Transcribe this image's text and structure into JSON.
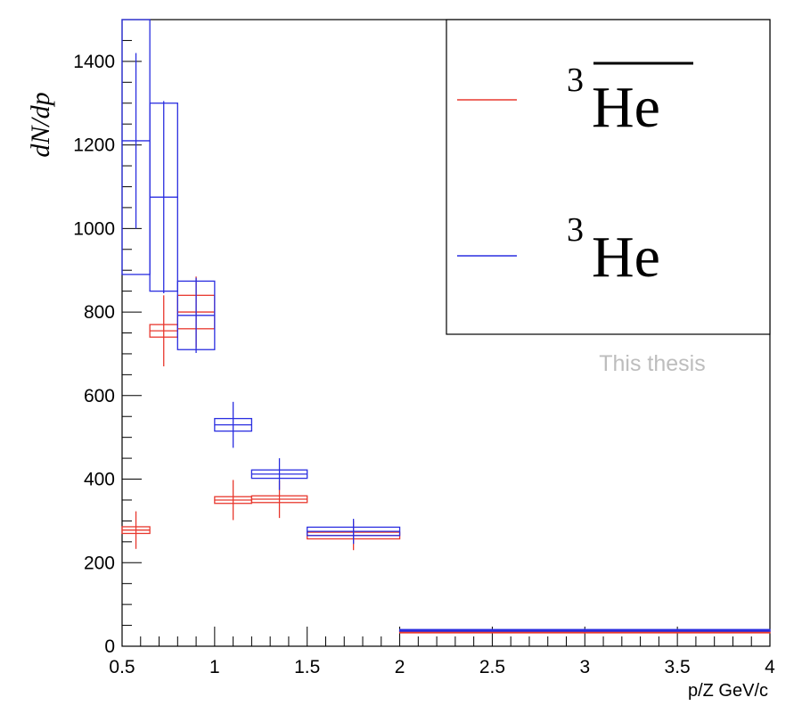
{
  "chart_data": {
    "type": "scatter",
    "xlabel": "p/Z GeV/c",
    "ylabel": "dN/dp",
    "xlim": [
      0.5,
      4
    ],
    "ylim": [
      0,
      1500
    ],
    "xticks": [
      "0.5",
      "1",
      "1.5",
      "2",
      "2.5",
      "3",
      "3.5",
      "4"
    ],
    "yticks": [
      "0",
      "200",
      "400",
      "600",
      "800",
      "1000",
      "1200",
      "1400"
    ],
    "grid": false,
    "legend_position": "top-right",
    "watermark": "This thesis",
    "series": [
      {
        "name": "anti-3He",
        "legend_label": "He",
        "legend_sup": "3",
        "legend_overline": true,
        "color": "#e8382e",
        "points": [
          {
            "x": 0.575,
            "xlo": 0.5,
            "xhi": 0.65,
            "y": 278,
            "stat": 45,
            "syst": 8
          },
          {
            "x": 0.725,
            "xlo": 0.65,
            "xhi": 0.8,
            "y": 755,
            "stat": 85,
            "syst": 15
          },
          {
            "x": 0.9,
            "xlo": 0.8,
            "xhi": 1.0,
            "y": 800,
            "stat": 85,
            "syst": 40
          },
          {
            "x": 1.1,
            "xlo": 1.0,
            "xhi": 1.2,
            "y": 350,
            "stat": 48,
            "syst": 8
          },
          {
            "x": 1.35,
            "xlo": 1.2,
            "xhi": 1.5,
            "y": 352,
            "stat": 45,
            "syst": 8
          },
          {
            "x": 1.75,
            "xlo": 1.5,
            "xhi": 2.0,
            "y": 265,
            "stat": 35,
            "syst": 8
          },
          {
            "x": 3.0,
            "xlo": 2.0,
            "xhi": 4.0,
            "y": 34,
            "stat": 4,
            "syst": 2
          }
        ]
      },
      {
        "name": "3He",
        "legend_label": "He",
        "legend_sup": "3",
        "legend_overline": false,
        "color": "#2a2ee0",
        "points": [
          {
            "x": 0.575,
            "xlo": 0.5,
            "xhi": 0.65,
            "y": 1210,
            "stat": 210,
            "syst": 320
          },
          {
            "x": 0.725,
            "xlo": 0.65,
            "xhi": 0.8,
            "y": 1075,
            "stat": 230,
            "syst": 225
          },
          {
            "x": 0.9,
            "xlo": 0.8,
            "xhi": 1.0,
            "y": 792,
            "stat": 90,
            "syst": 82
          },
          {
            "x": 1.1,
            "xlo": 1.0,
            "xhi": 1.2,
            "y": 530,
            "stat": 55,
            "syst": 15
          },
          {
            "x": 1.35,
            "xlo": 1.2,
            "xhi": 1.5,
            "y": 412,
            "stat": 38,
            "syst": 10
          },
          {
            "x": 1.75,
            "xlo": 1.5,
            "xhi": 2.0,
            "y": 275,
            "stat": 30,
            "syst": 10
          },
          {
            "x": 3.0,
            "xlo": 2.0,
            "xhi": 4.0,
            "y": 38,
            "stat": 4,
            "syst": 2
          }
        ]
      }
    ]
  }
}
